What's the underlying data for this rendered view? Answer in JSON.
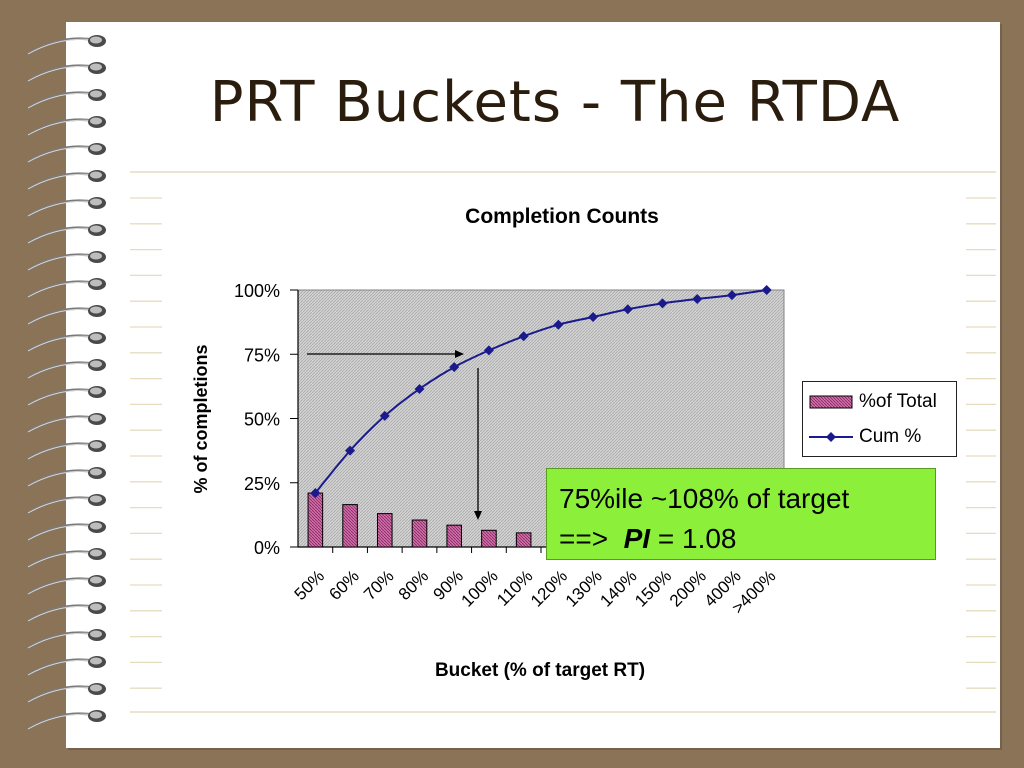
{
  "slide": {
    "title": "PRT Buckets - The RTDA",
    "callout_line1": "75%ile ~108% of target",
    "callout_line2_prefix": "==>  ",
    "callout_pi": "PI",
    "callout_line2_suffix": " = 1.08",
    "callout_color": "#8cf03a"
  },
  "chart_data": {
    "type": "bar",
    "title": "Completion Counts",
    "xlabel": "Bucket (% of target RT)",
    "ylabel": "% of completions",
    "ylim": [
      0,
      1
    ],
    "yticks": [
      "0%",
      "25%",
      "50%",
      "75%",
      "100%"
    ],
    "categories": [
      "50%",
      "60%",
      "70%",
      "80%",
      "90%",
      "100%",
      "110%",
      "120%",
      "130%",
      "140%",
      "150%",
      "200%",
      "400%",
      ">400%"
    ],
    "series": [
      {
        "name": "%of Total",
        "kind": "bar",
        "color": "#c0609a",
        "values": [
          0.21,
          0.165,
          0.13,
          0.105,
          0.085,
          0.065,
          0.055,
          0.045,
          0.035,
          0.03,
          0.025,
          0.02,
          0.015,
          0.01
        ]
      },
      {
        "name": "Cum %",
        "kind": "line",
        "color": "#1a1a8c",
        "values": [
          0.21,
          0.375,
          0.51,
          0.615,
          0.7,
          0.765,
          0.82,
          0.865,
          0.895,
          0.925,
          0.948,
          0.965,
          0.98,
          1.0
        ]
      }
    ],
    "legend_position": "right",
    "grid": false
  }
}
